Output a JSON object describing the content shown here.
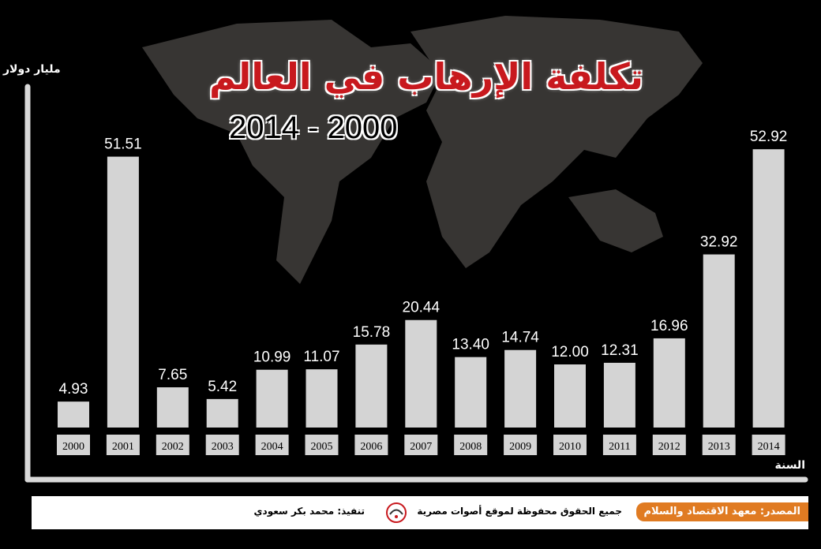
{
  "chart_data": {
    "type": "bar",
    "title": "تكلفة الإرهاب في العالم",
    "subtitle": "2014 - 2000",
    "ylabel": "مليار دولار",
    "xlabel": "السنة",
    "ylim": [
      0,
      60
    ],
    "categories": [
      "2000",
      "2001",
      "2002",
      "2003",
      "2004",
      "2005",
      "2006",
      "2007",
      "2008",
      "2009",
      "2010",
      "2011",
      "2012",
      "2013",
      "2014"
    ],
    "values": [
      4.93,
      51.51,
      7.65,
      5.42,
      10.99,
      11.07,
      15.78,
      20.44,
      13.4,
      14.74,
      12.0,
      12.31,
      16.96,
      32.92,
      52.92
    ],
    "value_labels": [
      "4.93",
      "51.51",
      "7.65",
      "5.42",
      "10.99",
      "11.07",
      "15.78",
      "20.44",
      "13.40",
      "14.74",
      "12.00",
      "12.31",
      "16.96",
      "32.92",
      "52.92"
    ],
    "grid": false,
    "legend": "none",
    "bar_color": "#d4d4d4",
    "background_color": "#000000",
    "title_color": "#c8191e"
  },
  "footer": {
    "source": "المصدر: معهد الاقتصاد والسلام",
    "rights": "جميع الحقوق محفوظة لموقع أصوات مصرية",
    "execution": "تنفيذ: محمد بكر سعودي",
    "logo_icon": "aswat-masriya-logo",
    "accent_color": "#e07b22"
  }
}
